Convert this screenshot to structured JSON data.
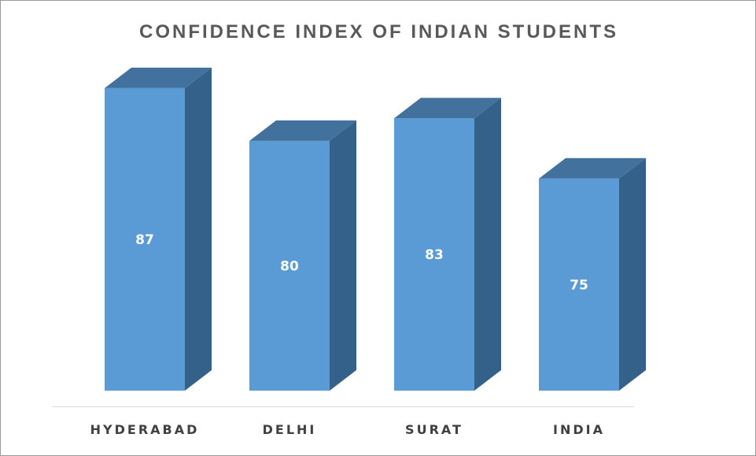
{
  "chart_data": {
    "type": "bar",
    "style": "3d-column",
    "title": "CONFIDENCE INDEX OF INDIAN STUDENTS",
    "categories": [
      "HYDERABAD",
      "DELHI",
      "SURAT",
      "INDIA"
    ],
    "values": [
      87,
      80,
      83,
      75
    ],
    "data_labels": [
      "87",
      "80",
      "83",
      "75"
    ],
    "xlabel": "",
    "ylabel": "",
    "grid": false,
    "legend": "none",
    "colors": {
      "front": "#5b9bd5",
      "top": "#41719c",
      "side": "#34618a",
      "axis": "#d9d9d9",
      "label": "#404040",
      "title": "#595959"
    }
  }
}
